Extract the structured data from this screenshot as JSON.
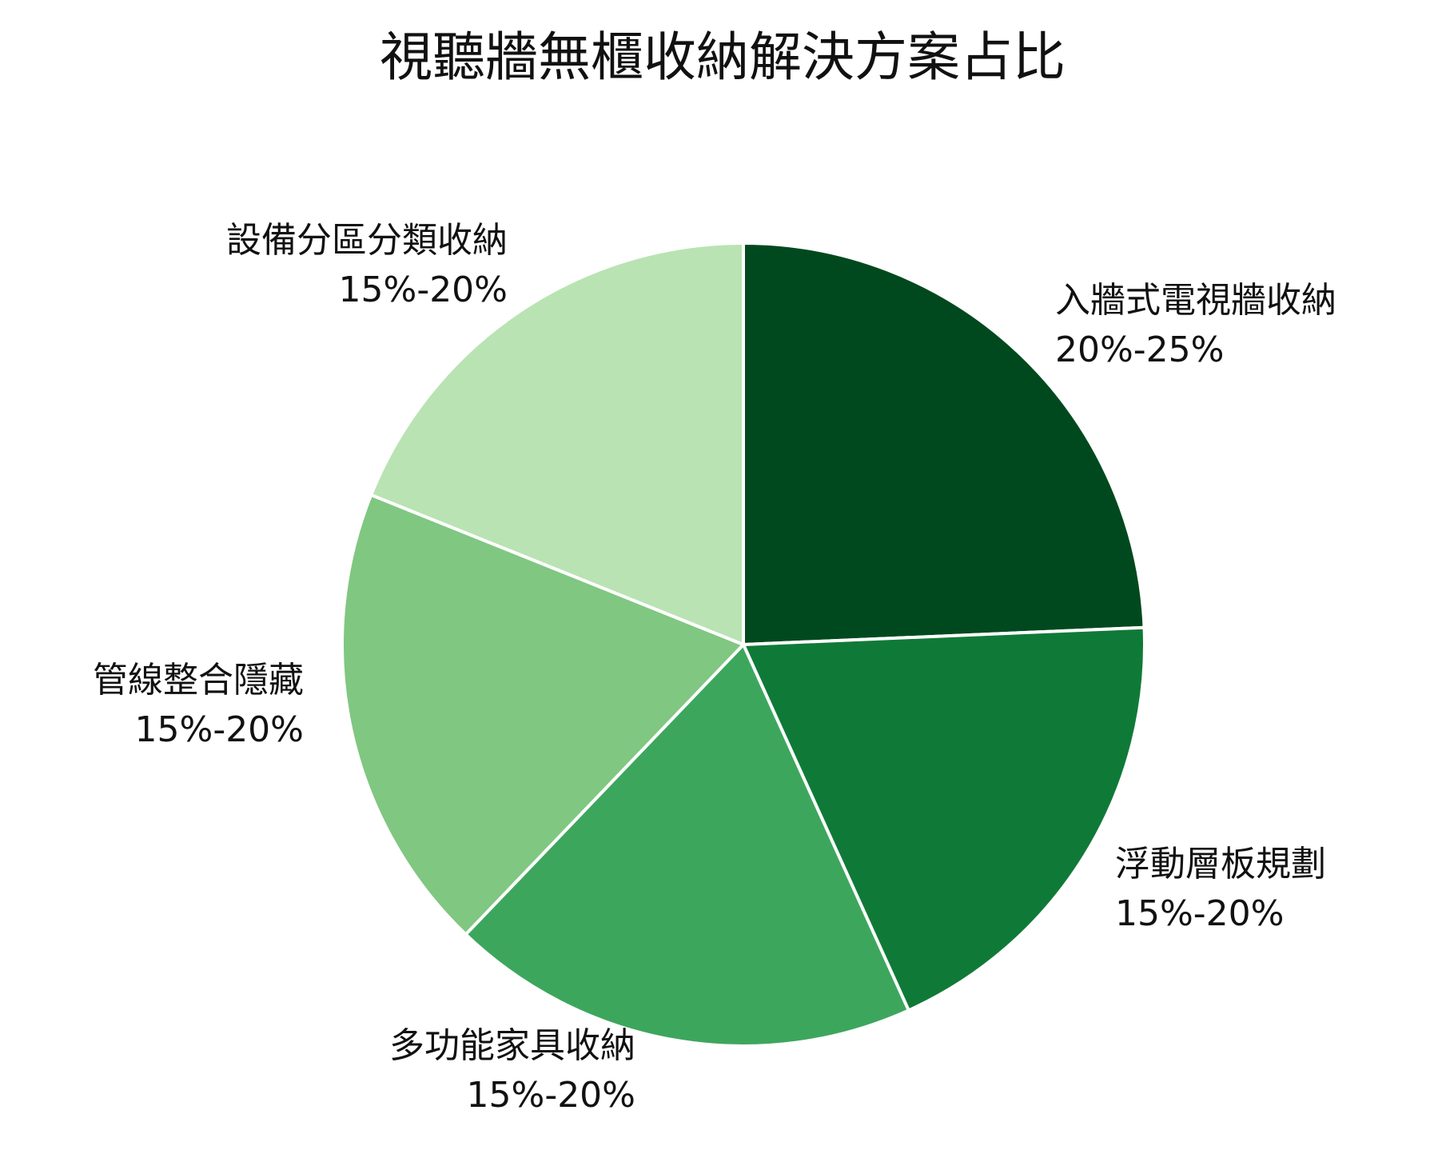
{
  "chart_data": {
    "type": "pie",
    "title": "視聽牆無櫃收納解決方案占比",
    "slices": [
      {
        "label": "入牆式電視牆收納",
        "value_label": "20%-25%",
        "value": 22.5,
        "color": "#00491e"
      },
      {
        "label": "浮動層板規劃",
        "value_label": "15%-20%",
        "value": 17.5,
        "color": "#0f7a37"
      },
      {
        "label": "多功能家具收納",
        "value_label": "15%-20%",
        "value": 17.5,
        "color": "#3da65d"
      },
      {
        "label": "管線整合隱藏",
        "value_label": "15%-20%",
        "value": 17.5,
        "color": "#80c781"
      },
      {
        "label": "設備分區分類收納",
        "value_label": "15%-20%",
        "value": 17.5,
        "color": "#b9e3b3"
      }
    ],
    "start_angle": "12 o'clock",
    "direction": "clockwise",
    "legend": "none",
    "slice_border_color": "#ffffff"
  }
}
